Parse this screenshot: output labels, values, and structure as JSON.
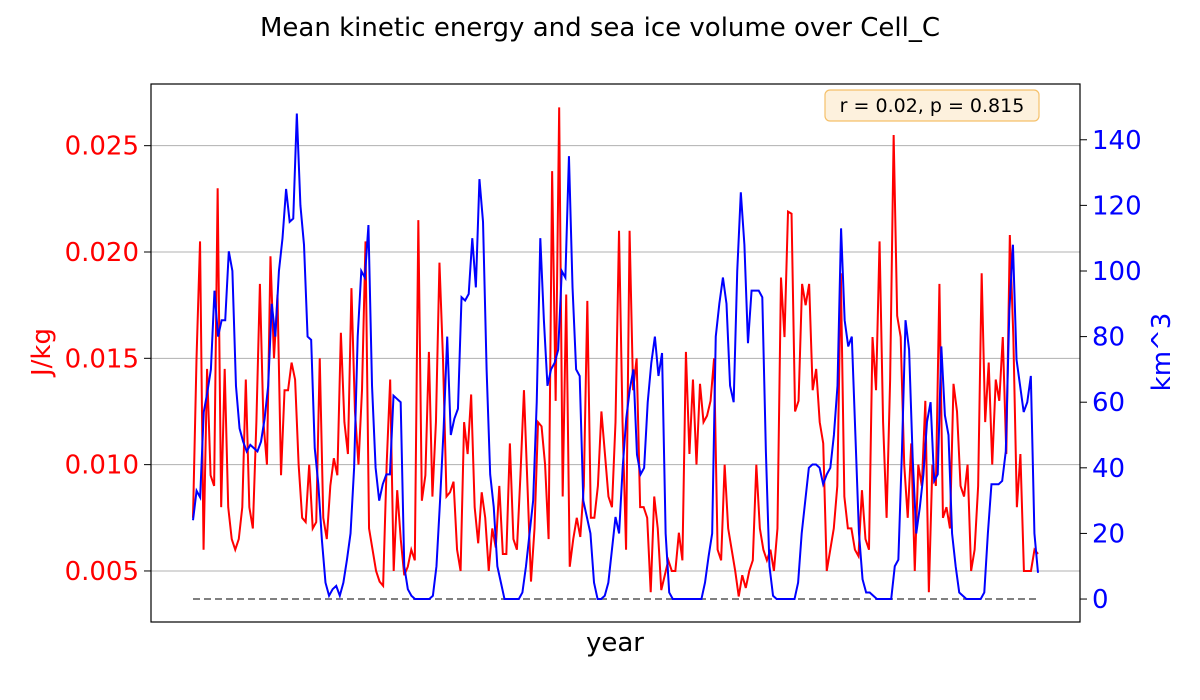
{
  "chart_data": {
    "type": "line",
    "title": "Mean kinetic energy and sea ice volume over Cell_C",
    "xlabel": "year",
    "x_ticks_shown": false,
    "grid": "horizontal",
    "colors": {
      "energy": "#ff0000",
      "ice": "#0000ff",
      "zero_line": "#808080",
      "annotation_bg": "#fdf1dd",
      "annotation_border": "#f5c06a"
    },
    "annotation": "r = 0.02, p = 0.815",
    "left_axis": {
      "label": "J/kg",
      "ylim": [
        0.0026,
        0.0279
      ],
      "ticks": [
        0.005,
        0.01,
        0.015,
        0.02,
        0.025
      ],
      "tick_labels": [
        "0.005",
        "0.010",
        "0.015",
        "0.020",
        "0.025"
      ]
    },
    "right_axis": {
      "label": "km^3",
      "ylim": [
        -7,
        157
      ],
      "ticks": [
        0,
        20,
        40,
        60,
        80,
        100,
        120,
        140
      ],
      "tick_labels": [
        "0",
        "20",
        "40",
        "60",
        "80",
        "100",
        "120",
        "140"
      ]
    },
    "reference_line_km3": 0,
    "series": [
      {
        "axis": "left",
        "values": [
          0.0075,
          0.015,
          0.0205,
          0.006,
          0.0145,
          0.0095,
          0.009,
          0.023,
          0.008,
          0.0145,
          0.008,
          0.0065,
          0.006,
          0.0065,
          0.008,
          0.014,
          0.008,
          0.007,
          0.012,
          0.0185,
          0.012,
          0.01,
          0.0198,
          0.015,
          0.018,
          0.0095,
          0.0135,
          0.0135,
          0.0148,
          0.014,
          0.01,
          0.0075,
          0.0073,
          0.01,
          0.007,
          0.0073,
          0.015,
          0.0075,
          0.0065,
          0.009,
          0.0103,
          0.0095,
          0.0162,
          0.012,
          0.0105,
          0.0183,
          0.0125,
          0.01,
          0.0135,
          0.0205,
          0.007,
          0.006,
          0.005,
          0.0045,
          0.0043,
          0.01,
          0.014,
          0.005,
          0.0088,
          0.0065,
          0.0048,
          0.0052,
          0.006,
          0.0055,
          0.0215,
          0.0083,
          0.0095,
          0.0153,
          0.0085,
          0.012,
          0.0195,
          0.015,
          0.0085,
          0.0087,
          0.0092,
          0.006,
          0.005,
          0.012,
          0.0105,
          0.0133,
          0.008,
          0.0063,
          0.0087,
          0.0075,
          0.005,
          0.007,
          0.0061,
          0.009,
          0.0058,
          0.0058,
          0.011,
          0.0065,
          0.006,
          0.0095,
          0.0135,
          0.009,
          0.0045,
          0.007,
          0.012,
          0.0118,
          0.01,
          0.0065,
          0.0238,
          0.013,
          0.0268,
          0.0085,
          0.018,
          0.0052,
          0.0065,
          0.0075,
          0.0066,
          0.009,
          0.0177,
          0.0075,
          0.0075,
          0.009,
          0.0125,
          0.0105,
          0.0085,
          0.008,
          0.012,
          0.021,
          0.012,
          0.006,
          0.021,
          0.0135,
          0.015,
          0.008,
          0.008,
          0.0075,
          0.004,
          0.0085,
          0.007,
          0.0041,
          0.0048,
          0.0055,
          0.005,
          0.005,
          0.0068,
          0.0055,
          0.0153,
          0.0105,
          0.014,
          0.01,
          0.0138,
          0.012,
          0.0123,
          0.013,
          0.015,
          0.006,
          0.0055,
          0.01,
          0.007,
          0.006,
          0.005,
          0.0038,
          0.0048,
          0.0042,
          0.005,
          0.0055,
          0.01,
          0.007,
          0.006,
          0.0055,
          0.006,
          0.005,
          0.007,
          0.0188,
          0.016,
          0.0219,
          0.0218,
          0.0125,
          0.013,
          0.0185,
          0.0175,
          0.0185,
          0.0135,
          0.0145,
          0.012,
          0.011,
          0.005,
          0.006,
          0.007,
          0.009,
          0.019,
          0.0085,
          0.007,
          0.007,
          0.006,
          0.0057,
          0.0088,
          0.0065,
          0.006,
          0.016,
          0.0135,
          0.0205,
          0.012,
          0.0075,
          0.014,
          0.0255,
          0.017,
          0.016,
          0.01,
          0.0075,
          0.011,
          0.005,
          0.01,
          0.009,
          0.013,
          0.004,
          0.01,
          0.009,
          0.0185,
          0.0075,
          0.008,
          0.007,
          0.0138,
          0.0125,
          0.009,
          0.0085,
          0.01,
          0.005,
          0.006,
          0.009,
          0.019,
          0.012,
          0.0148,
          0.01,
          0.014,
          0.013,
          0.016,
          0.0105,
          0.0208,
          0.016,
          0.008,
          0.0105,
          0.005,
          0.005,
          0.005,
          0.006,
          0.0058
        ]
      },
      {
        "axis": "right",
        "values": [
          24,
          33,
          31,
          57,
          63,
          70,
          94,
          80,
          85,
          85,
          106,
          100,
          65,
          52,
          48,
          45,
          47,
          46,
          45,
          48,
          55,
          65,
          90,
          80,
          100,
          110,
          125,
          115,
          116,
          148,
          120,
          108,
          80,
          79,
          46,
          35,
          18,
          5,
          1,
          3,
          4,
          1,
          5,
          12,
          20,
          40,
          80,
          100,
          98,
          114,
          65,
          40,
          30,
          35,
          38,
          38,
          62,
          61,
          60,
          10,
          3,
          1,
          0,
          0,
          0,
          0,
          0,
          1,
          10,
          30,
          52,
          80,
          50,
          55,
          58,
          92,
          91,
          93,
          110,
          95,
          128,
          115,
          70,
          38,
          28,
          10,
          5,
          0,
          0,
          0,
          0,
          0,
          2,
          10,
          20,
          30,
          60,
          110,
          85,
          65,
          70,
          72,
          76,
          100,
          98,
          135,
          95,
          70,
          68,
          30,
          25,
          20,
          5,
          0,
          0,
          1,
          5,
          15,
          25,
          20,
          40,
          55,
          64,
          70,
          44,
          38,
          40,
          60,
          72,
          80,
          68,
          75,
          20,
          2,
          0,
          0,
          0,
          0,
          0,
          0,
          0,
          0,
          0,
          5,
          13,
          20,
          80,
          90,
          98,
          90,
          65,
          60,
          100,
          124,
          108,
          78,
          94,
          94,
          94,
          92,
          45,
          10,
          1,
          0,
          0,
          0,
          0,
          0,
          0,
          5,
          20,
          30,
          40,
          41,
          41,
          40,
          35,
          38,
          40,
          50,
          65,
          113,
          85,
          77,
          80,
          50,
          20,
          6,
          2,
          2,
          1,
          0,
          0,
          0,
          0,
          0,
          10,
          12,
          45,
          85,
          76,
          43,
          20,
          28,
          38,
          54,
          60,
          36,
          38,
          77,
          56,
          50,
          20,
          10,
          2,
          1,
          0,
          0,
          0,
          0,
          0,
          2,
          20,
          35,
          35,
          35,
          36,
          45,
          88,
          108,
          73,
          65,
          57,
          60,
          68,
          20,
          8
        ]
      }
    ]
  }
}
